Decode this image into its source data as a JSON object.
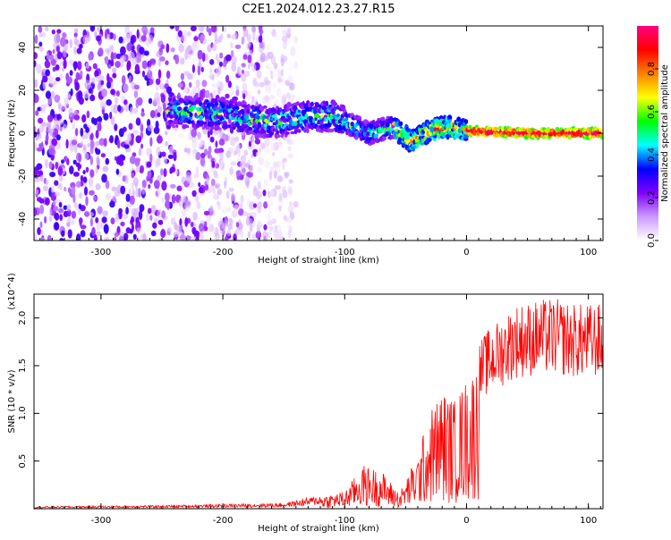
{
  "title": "C2E1.2024.012.23.27.R15",
  "chart_data": [
    {
      "type": "heatmap",
      "xlabel": "Height of straight line (km)",
      "ylabel": "Frequency (Hz)",
      "xlim": [
        -355,
        112
      ],
      "ylim": [
        -50,
        50
      ],
      "xticks": [
        -300,
        -200,
        -100,
        0,
        100
      ],
      "yticks": [
        -40,
        -20,
        0,
        20,
        40
      ],
      "colorbar": {
        "label": "Normalized spectral amplitude",
        "range": [
          0.0,
          1.0
        ],
        "ticks": [
          0.0,
          0.2,
          0.4,
          0.6,
          0.8
        ],
        "colormap": [
          "#ffffff",
          "#cc99ff",
          "#8000ff",
          "#0000ff",
          "#00ffff",
          "#00ff00",
          "#ffff00",
          "#ff8000",
          "#ff0000",
          "#ff0080"
        ]
      },
      "ridge": {
        "description_points": [
          {
            "x": -240,
            "y": 10
          },
          {
            "x": -200,
            "y": 9
          },
          {
            "x": -160,
            "y": 5
          },
          {
            "x": -130,
            "y": 8
          },
          {
            "x": -110,
            "y": 8
          },
          {
            "x": -95,
            "y": 4
          },
          {
            "x": -80,
            "y": 0
          },
          {
            "x": -60,
            "y": 3
          },
          {
            "x": -45,
            "y": -4
          },
          {
            "x": -30,
            "y": 1
          },
          {
            "x": -15,
            "y": 3
          },
          {
            "x": 0,
            "y": 1
          },
          {
            "x": 50,
            "y": 0
          },
          {
            "x": 112,
            "y": 0
          }
        ]
      }
    },
    {
      "type": "line",
      "xlabel": "Height of straight line (km)",
      "ylabel": "SNR (10 * v/v)",
      "scale_note": "(x10^4)",
      "xlim": [
        -355,
        112
      ],
      "ylim": [
        0,
        22500
      ],
      "xticks": [
        -300,
        -200,
        -100,
        0,
        100
      ],
      "yticks": [
        5000,
        10000,
        15000,
        20000
      ],
      "ytick_labels": [
        "0.5",
        "1.0",
        "1.5",
        "2.0"
      ],
      "color": "#ff0000",
      "series": [
        {
          "envelope": [
            {
              "x": -355,
              "y": 200
            },
            {
              "x": -250,
              "y": 300
            },
            {
              "x": -200,
              "y": 400
            },
            {
              "x": -150,
              "y": 500
            },
            {
              "x": -120,
              "y": 1200
            },
            {
              "x": -100,
              "y": 1600
            },
            {
              "x": -85,
              "y": 4000
            },
            {
              "x": -70,
              "y": 3500
            },
            {
              "x": -55,
              "y": 1500
            },
            {
              "x": -40,
              "y": 5000
            },
            {
              "x": -30,
              "y": 9000
            },
            {
              "x": -20,
              "y": 11000
            },
            {
              "x": -10,
              "y": 10000
            },
            {
              "x": 0,
              "y": 12000
            },
            {
              "x": 15,
              "y": 15000
            },
            {
              "x": 40,
              "y": 17500
            },
            {
              "x": 70,
              "y": 18000
            },
            {
              "x": 90,
              "y": 17500
            },
            {
              "x": 112,
              "y": 17500
            }
          ]
        }
      ]
    }
  ]
}
